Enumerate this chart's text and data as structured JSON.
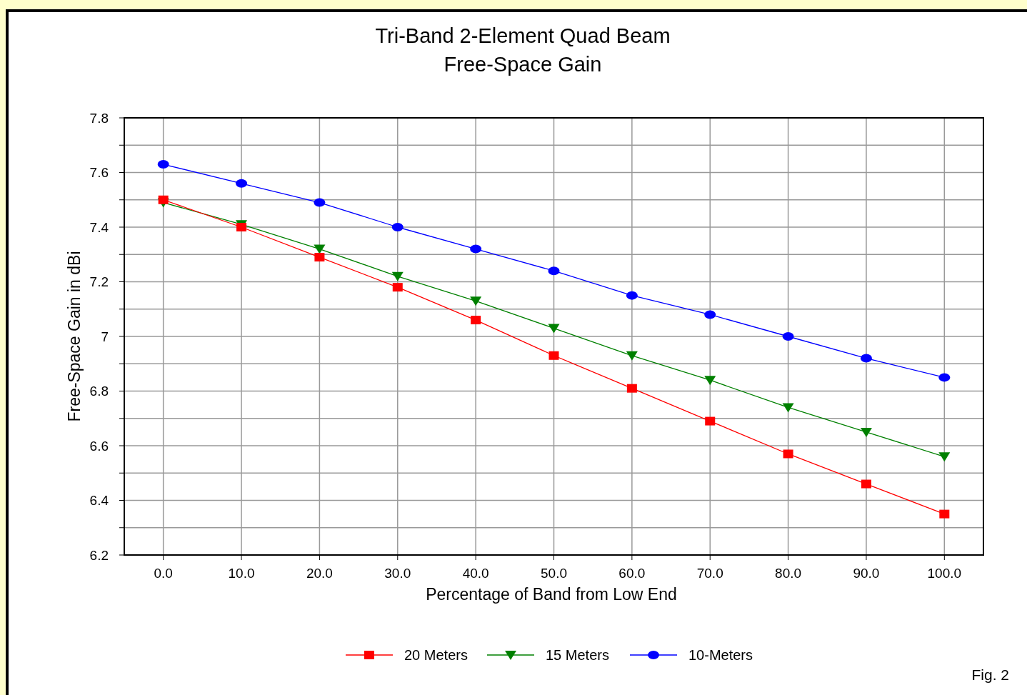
{
  "chart_data": {
    "type": "line",
    "title": "Tri-Band 2-Element Quad Beam",
    "subtitle": "Free-Space Gain",
    "xlabel": "Percentage of Band from Low End",
    "ylabel": "Free-Space Gain in dBi",
    "x": [
      0,
      10,
      20,
      30,
      40,
      50,
      60,
      70,
      80,
      90,
      100
    ],
    "series": [
      {
        "name": "20 Meters",
        "color": "#ff0000",
        "marker": "square",
        "values": [
          7.5,
          7.4,
          7.29,
          7.18,
          7.06,
          6.93,
          6.81,
          6.69,
          6.57,
          6.46,
          6.35
        ]
      },
      {
        "name": "15 Meters",
        "color": "#008000",
        "marker": "triangle",
        "values": [
          7.49,
          7.41,
          7.32,
          7.22,
          7.13,
          7.03,
          6.93,
          6.84,
          6.74,
          6.65,
          6.56
        ]
      },
      {
        "name": "10-Meters",
        "color": "#0000ff",
        "marker": "circle",
        "values": [
          7.63,
          7.56,
          7.49,
          7.4,
          7.32,
          7.24,
          7.15,
          7.08,
          7.0,
          6.92,
          6.85
        ]
      }
    ],
    "xlim": [
      -5,
      105
    ],
    "xticks": [
      {
        "value": 0,
        "label": "0.0"
      },
      {
        "value": 10,
        "label": "10.0"
      },
      {
        "value": 20,
        "label": "20.0"
      },
      {
        "value": 30,
        "label": "30.0"
      },
      {
        "value": 40,
        "label": "40.0"
      },
      {
        "value": 50,
        "label": "50.0"
      },
      {
        "value": 60,
        "label": "60.0"
      },
      {
        "value": 70,
        "label": "70.0"
      },
      {
        "value": 80,
        "label": "80.0"
      },
      {
        "value": 90,
        "label": "90.0"
      },
      {
        "value": 100,
        "label": "100.0"
      }
    ],
    "ylim": [
      6.2,
      7.8
    ],
    "yticks": [
      6.2,
      {
        "value": 6.3,
        "label": null
      },
      6.4,
      {
        "value": 6.5,
        "label": null
      },
      6.6,
      {
        "value": 6.7,
        "label": null
      },
      6.8,
      {
        "value": 6.9,
        "label": null
      },
      7,
      {
        "value": 7.1,
        "label": null
      },
      7.2,
      {
        "value": 7.3,
        "label": null
      },
      7.4,
      {
        "value": 7.5,
        "label": null
      },
      7.6,
      {
        "value": 7.7,
        "label": null
      },
      7.8
    ],
    "grid": true,
    "legend": "bottom",
    "line_style": "solid",
    "annotations": [
      "Fig. 2"
    ]
  }
}
